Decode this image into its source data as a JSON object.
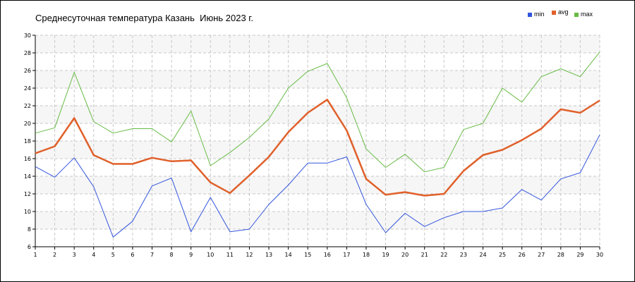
{
  "chart_data": {
    "type": "line",
    "title": "Среднесуточная температура Казань  Июнь 2023 г.",
    "xlabel": "",
    "ylabel": "",
    "x": [
      1,
      2,
      3,
      4,
      5,
      6,
      7,
      8,
      9,
      10,
      11,
      12,
      13,
      14,
      15,
      16,
      17,
      18,
      19,
      20,
      21,
      22,
      23,
      24,
      25,
      26,
      27,
      28,
      29,
      30
    ],
    "xlim": [
      1,
      30
    ],
    "ylim": [
      6,
      30
    ],
    "y_ticks": [
      6,
      8,
      10,
      12,
      14,
      16,
      18,
      20,
      22,
      24,
      26,
      28,
      30
    ],
    "grid": true,
    "legend_position": "top-right",
    "series": [
      {
        "name": "min",
        "color": "#3355dd",
        "values": [
          15.1,
          13.9,
          16.1,
          12.8,
          7.1,
          8.9,
          12.9,
          13.8,
          7.7,
          11.6,
          7.7,
          8.0,
          10.8,
          13.0,
          15.5,
          15.5,
          16.2,
          10.8,
          7.6,
          9.8,
          8.3,
          9.3,
          10.0,
          10.0,
          10.4,
          12.5,
          11.3,
          13.7,
          14.4,
          18.7
        ]
      },
      {
        "name": "avg",
        "color": "#e0602a",
        "values": [
          16.6,
          17.4,
          20.6,
          16.4,
          15.4,
          15.4,
          16.1,
          15.7,
          15.8,
          13.3,
          12.1,
          14.1,
          16.2,
          19.0,
          21.2,
          22.7,
          19.2,
          13.7,
          11.9,
          12.2,
          11.8,
          12.0,
          14.6,
          16.4,
          17.0,
          18.1,
          19.4,
          21.6,
          21.2,
          22.6
        ]
      },
      {
        "name": "max",
        "color": "#66bb44",
        "values": [
          18.9,
          19.5,
          25.8,
          20.2,
          18.9,
          19.4,
          19.4,
          17.9,
          21.4,
          15.2,
          16.7,
          18.4,
          20.5,
          24.0,
          25.9,
          26.8,
          22.9,
          17.1,
          15.0,
          16.5,
          14.5,
          15.0,
          19.3,
          20.0,
          24.0,
          22.4,
          25.3,
          26.2,
          25.3,
          28.1
        ]
      }
    ]
  }
}
